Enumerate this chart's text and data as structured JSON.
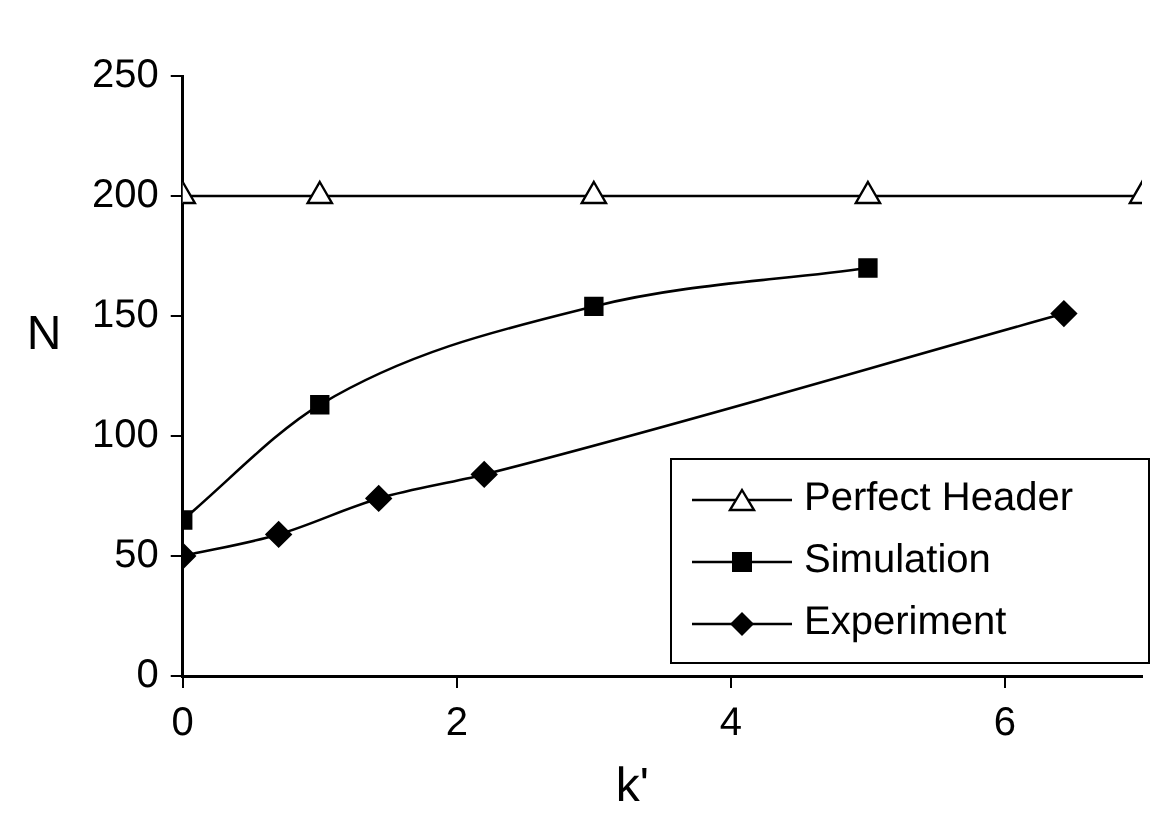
{
  "chart_data": {
    "type": "line",
    "xlabel": "k'",
    "ylabel": "N",
    "xlim": [
      0,
      7
    ],
    "xticks": [
      0,
      2,
      4,
      6
    ],
    "ylim": [
      0,
      250
    ],
    "yticks": [
      0,
      50,
      100,
      150,
      200,
      250
    ],
    "grid": false,
    "legend": "bottom right",
    "series": [
      {
        "name": "Perfect Header",
        "color": "#000000",
        "marker": "triangle",
        "x": [
          0,
          1,
          3,
          5,
          7
        ],
        "values": [
          200,
          200,
          200,
          200,
          200
        ]
      },
      {
        "name": "Simulation",
        "color": "#000000",
        "marker": "square",
        "x": [
          0,
          1,
          3,
          5
        ],
        "values": [
          65,
          113,
          154,
          170
        ]
      },
      {
        "name": "Experiment",
        "color": "#000000",
        "marker": "diamond",
        "x": [
          0,
          0.7,
          1.43,
          2.2,
          6.43
        ],
        "values": [
          50,
          59,
          74,
          84,
          151
        ]
      }
    ]
  }
}
